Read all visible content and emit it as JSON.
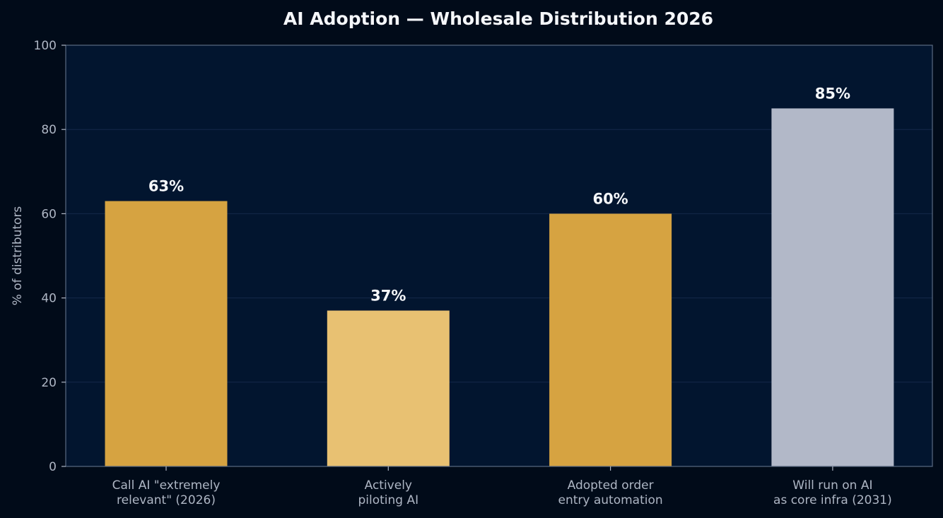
{
  "chart_data": {
    "type": "bar",
    "title": "AI Adoption — Wholesale Distribution 2026",
    "ylabel": "% of distributors",
    "xlabel": "",
    "ylim": [
      0,
      100
    ],
    "yticks": [
      0,
      20,
      40,
      60,
      80,
      100
    ],
    "grid": true,
    "categories": [
      [
        "Call AI \"extremely",
        "relevant\" (2026)"
      ],
      [
        "Actively",
        "piloting AI"
      ],
      [
        "Adopted order",
        "entry automation"
      ],
      [
        "Will run on AI",
        "as core infra (2031)"
      ]
    ],
    "values": [
      63,
      37,
      60,
      85
    ],
    "value_labels": [
      "63%",
      "37%",
      "60%",
      "85%"
    ],
    "colors": [
      "#d6a341",
      "#e8c172",
      "#d6a341",
      "#b2b8c8"
    ]
  },
  "theme": {
    "background": "#010b19",
    "plot_background": "#02152f",
    "text": "#f5f7fa",
    "muted_text": "#aeb6c4",
    "grid": "#14284a",
    "axis": "#5b6b83"
  }
}
